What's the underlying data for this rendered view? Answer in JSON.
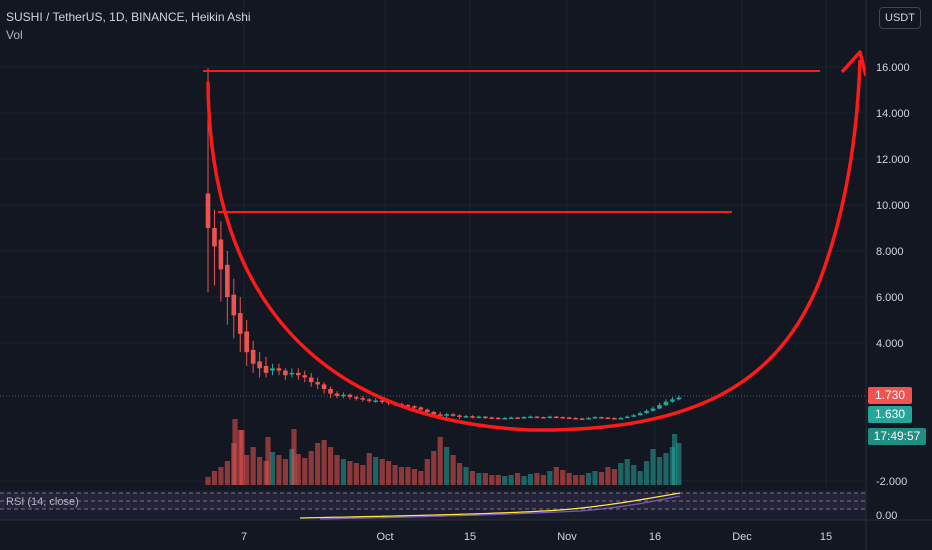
{
  "legend": {
    "title": "SUSHI / TetherUS, 1D, BINANCE, Heikin Ashi",
    "volume_label": "Vol"
  },
  "currency_button": "USDT",
  "rsi_label": "RSI (14, close)",
  "colors": {
    "background": "#131722",
    "up": "#26a69a",
    "down": "#ef5350",
    "annotation": "#ff1a1a",
    "grid": "#1e222d",
    "axis_text": "#d1d4dc"
  },
  "price_tags": {
    "upper": {
      "text": "1.730",
      "color": "#f05350"
    },
    "last": {
      "text": "1.630",
      "color": "#26a69a"
    },
    "countdown": {
      "text": "17:49:57",
      "color": "#1f8e83"
    }
  },
  "chart_data": {
    "type": "candlestick",
    "title": "SUSHI / TetherUS, 1D, BINANCE, Heikin Ashi",
    "y_ticks": [
      "16.000",
      "14.000",
      "12.000",
      "10.000",
      "8.000",
      "6.000",
      "4.000",
      "-2.000"
    ],
    "y_tick_values": [
      16,
      14,
      12,
      10,
      8,
      6,
      4,
      -2
    ],
    "rsi_ticks": [
      "0.00"
    ],
    "x_ticks": [
      "7",
      "Oct",
      "15",
      "Nov",
      "16",
      "Dec",
      "15"
    ],
    "ylim": [
      -2.6,
      17.6
    ],
    "grid": true,
    "candles_summary": {
      "first_day_open": 10.5,
      "first_day_high": 15.95,
      "bottom_range": [
        0.5,
        1.6
      ],
      "last_close": 1.63
    },
    "annotations": {
      "horizontal_lines": [
        15.8,
        9.7
      ],
      "cup_shape": "red U-shaped curve with upward arrow projecting to ~16.5"
    }
  }
}
